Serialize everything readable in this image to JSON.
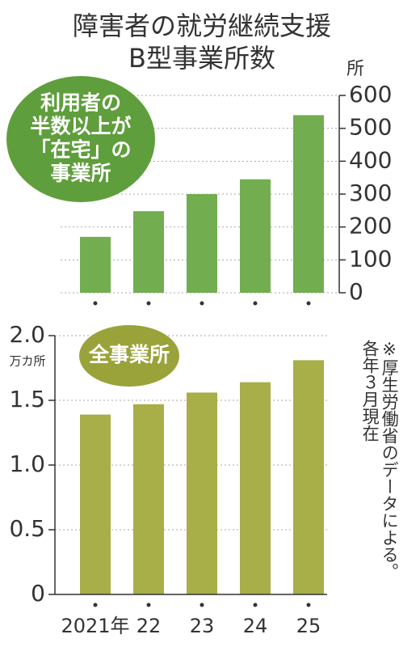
{
  "title": [
    "障害者の就労継続支援",
    "B型事業所数"
  ],
  "note": [
    "※厚生労働省のデータによる。",
    "各年３月現在"
  ],
  "chart_data": [
    {
      "type": "bar",
      "badge": [
        "利用者の",
        "半数以上が",
        "「在宅」の",
        "事業所"
      ],
      "y_unit": "所",
      "categories": [
        null,
        null,
        null,
        null,
        null
      ],
      "values": [
        170,
        248,
        300,
        345,
        540
      ],
      "color": "#72ad4f",
      "ylim": [
        0,
        600
      ],
      "yticks": [
        0,
        100,
        200,
        300,
        400,
        500,
        600
      ],
      "grid": true
    },
    {
      "type": "bar",
      "badge": [
        "全事業所"
      ],
      "y_unit": "万カ所",
      "categories": [
        "2021年",
        "22",
        "23",
        "24",
        "25"
      ],
      "values": [
        1.39,
        1.47,
        1.56,
        1.64,
        1.81
      ],
      "color": "#a8ae48",
      "ylim": [
        0,
        2.0
      ],
      "yticks": [
        0,
        0.5,
        {
          "value": 1.0,
          "label": "1.0"
        },
        1.5,
        {
          "value": 2.0,
          "label": "2.0"
        }
      ],
      "grid": true
    }
  ]
}
